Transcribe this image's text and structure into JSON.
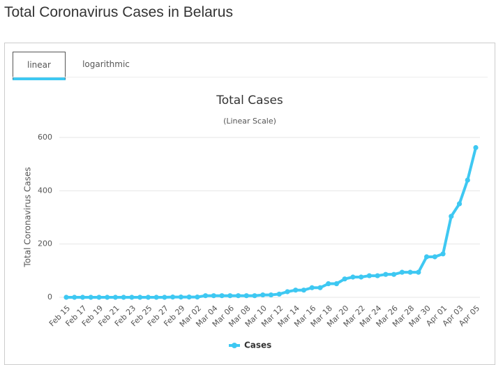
{
  "page_title": "Total Coronavirus Cases in Belarus",
  "tabs": [
    "linear",
    "logarithmic"
  ],
  "chart_data": {
    "type": "line",
    "title": "Total Cases",
    "subtitle": "(Linear Scale)",
    "y_label": "Total Coronavirus Cases",
    "categories": [
      "Feb 15",
      null,
      "Feb 17",
      null,
      "Feb 19",
      null,
      "Feb 21",
      null,
      "Feb 23",
      null,
      "Feb 25",
      null,
      "Feb 27",
      null,
      "Feb 29",
      null,
      "Mar 02",
      null,
      "Mar 04",
      null,
      "Mar 06",
      null,
      "Mar 08",
      null,
      "Mar 10",
      null,
      "Mar 12",
      null,
      "Mar 14",
      null,
      "Mar 16",
      null,
      "Mar 18",
      null,
      "Mar 20",
      null,
      "Mar 22",
      null,
      "Mar 24",
      null,
      "Mar 26",
      null,
      "Mar 28",
      null,
      "Mar 30",
      null,
      "Apr 01",
      null,
      "Apr 03",
      null,
      "Apr 05"
    ],
    "series": [
      {
        "name": "Cases",
        "color": "#3ec8f2",
        "values": [
          0,
          0,
          0,
          0,
          0,
          0,
          0,
          0,
          0,
          0,
          0,
          0,
          0,
          1,
          1,
          1,
          1,
          6,
          6,
          6,
          6,
          6,
          6,
          6,
          9,
          9,
          12,
          21,
          27,
          27,
          36,
          36,
          51,
          51,
          69,
          76,
          76,
          81,
          81,
          86,
          86,
          94,
          94,
          94,
          152,
          152,
          163,
          304,
          351,
          440,
          562
        ]
      }
    ],
    "ylim": [
      0,
      600
    ],
    "yticks": [
      0,
      200,
      400,
      600
    ],
    "grid": true
  }
}
